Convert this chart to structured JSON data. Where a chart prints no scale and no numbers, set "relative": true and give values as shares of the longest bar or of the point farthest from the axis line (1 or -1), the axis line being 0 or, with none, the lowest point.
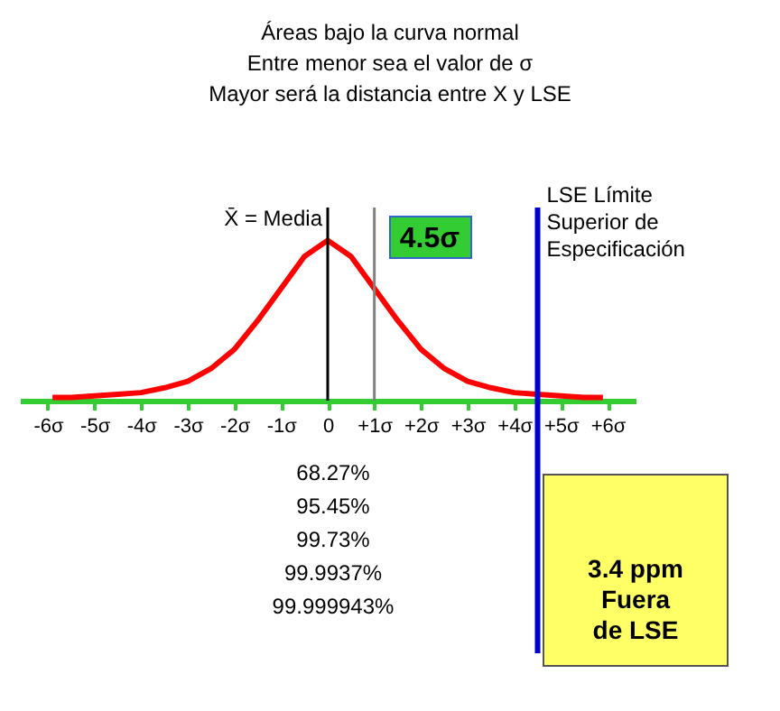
{
  "chart_data": {
    "type": "line",
    "relative": true,
    "title": "Áreas bajo la curva normal",
    "subtitle": "Entre menor sea el valor de σ\nMayor será la distancia entre X y LSE",
    "x": [
      -5.9,
      -5.5,
      -5,
      -4.5,
      -4,
      -3.5,
      -3,
      -2.5,
      -2,
      -1.5,
      -1,
      -0.5,
      0,
      0.5,
      1,
      1.5,
      2,
      2.5,
      3,
      3.5,
      4,
      4.5,
      5,
      5.5,
      5.9
    ],
    "series": [
      {
        "color": "#ff0000",
        "values": [
          0.02,
          0.02,
          0.03,
          0.04,
          0.05,
          0.08,
          0.12,
          0.2,
          0.32,
          0.5,
          0.7,
          0.9,
          1,
          0.9,
          0.7,
          0.5,
          0.32,
          0.2,
          0.12,
          0.08,
          0.05,
          0.04,
          0.03,
          0.02,
          0.02
        ]
      }
    ],
    "xlim": [
      -6.6,
      6.6
    ],
    "xticks": [
      {
        "value": -6,
        "label": "-6σ"
      },
      {
        "value": -5,
        "label": "-5σ"
      },
      {
        "value": -4,
        "label": "-4σ"
      },
      {
        "value": -3,
        "label": "-3σ"
      },
      {
        "value": -2,
        "label": "-2σ"
      },
      {
        "value": -1,
        "label": "-1σ"
      },
      0,
      {
        "value": 1,
        "label": "+1σ"
      },
      {
        "value": 2,
        "label": "+2σ"
      },
      {
        "value": 3,
        "label": "+3σ"
      },
      {
        "value": 4,
        "label": "+4σ"
      },
      {
        "value": 5,
        "label": "+5σ"
      },
      {
        "value": 6,
        "label": "+6σ"
      }
    ],
    "ref_lines": [
      {
        "axis": "x",
        "value": 0,
        "label": "X̄ = Media",
        "color": "#000000"
      },
      {
        "axis": "x",
        "value": 1,
        "color": "#808080"
      },
      {
        "axis": "x",
        "value": 4.5,
        "label": "LSE Límite Superior de Especificación",
        "color": "#0000cc"
      }
    ],
    "annotations": [
      "4.5σ",
      "68.27%",
      "95.45%",
      "99.73%",
      "99.9937%",
      "99.999943%",
      "3.4 ppm Fuera de LSE"
    ],
    "grid": false,
    "marker": "none",
    "line_style": "solid"
  }
}
